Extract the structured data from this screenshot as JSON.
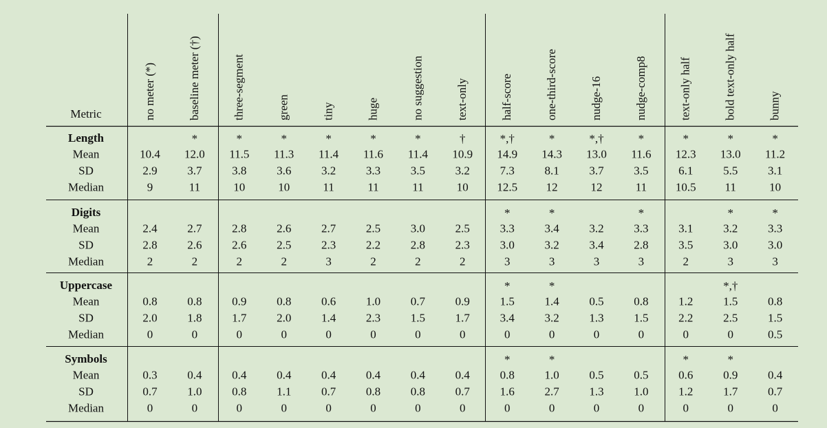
{
  "table": {
    "header": {
      "metric": "Metric",
      "columns": [
        "no meter (*)",
        "baseline meter (†)",
        "three-segment",
        "green",
        "tiny",
        "huge",
        "no suggestion",
        "text-only",
        "half-score",
        "one-third-score",
        "nudge-16",
        "nudge-comp8",
        "text-only half",
        "bold text-only half",
        "bunny"
      ]
    },
    "sections": [
      {
        "name": "Length",
        "markers": [
          null,
          "*",
          "*",
          "*",
          "*",
          "*",
          "*",
          "†",
          "*,†",
          "*",
          "*,†",
          "*",
          "*",
          "*",
          "*"
        ],
        "rows": [
          {
            "label": "Mean",
            "values": [
              "10.4",
              "12.0",
              "11.5",
              "11.3",
              "11.4",
              "11.6",
              "11.4",
              "10.9",
              "14.9",
              "14.3",
              "13.0",
              "11.6",
              "12.3",
              "13.0",
              "11.2"
            ]
          },
          {
            "label": "SD",
            "values": [
              "2.9",
              "3.7",
              "3.8",
              "3.6",
              "3.2",
              "3.3",
              "3.5",
              "3.2",
              "7.3",
              "8.1",
              "3.7",
              "3.5",
              "6.1",
              "5.5",
              "3.1"
            ]
          },
          {
            "label": "Median",
            "values": [
              "9",
              "11",
              "10",
              "10",
              "11",
              "11",
              "11",
              "10",
              "12.5",
              "12",
              "12",
              "11",
              "10.5",
              "11",
              "10"
            ]
          }
        ]
      },
      {
        "name": "Digits",
        "markers": [
          null,
          null,
          null,
          null,
          null,
          null,
          null,
          null,
          "*",
          "*",
          null,
          "*",
          null,
          "*",
          "*"
        ],
        "rows": [
          {
            "label": "Mean",
            "values": [
              "2.4",
              "2.7",
              "2.8",
              "2.6",
              "2.7",
              "2.5",
              "3.0",
              "2.5",
              "3.3",
              "3.4",
              "3.2",
              "3.3",
              "3.1",
              "3.2",
              "3.3"
            ]
          },
          {
            "label": "SD",
            "values": [
              "2.8",
              "2.6",
              "2.6",
              "2.5",
              "2.3",
              "2.2",
              "2.8",
              "2.3",
              "3.0",
              "3.2",
              "3.4",
              "2.8",
              "3.5",
              "3.0",
              "3.0"
            ]
          },
          {
            "label": "Median",
            "values": [
              "2",
              "2",
              "2",
              "2",
              "3",
              "2",
              "2",
              "2",
              "3",
              "3",
              "3",
              "3",
              "2",
              "3",
              "3"
            ]
          }
        ]
      },
      {
        "name": "Uppercase",
        "markers": [
          null,
          null,
          null,
          null,
          null,
          null,
          null,
          null,
          "*",
          "*",
          null,
          null,
          null,
          "*,†",
          null
        ],
        "rows": [
          {
            "label": "Mean",
            "values": [
              "0.8",
              "0.8",
              "0.9",
              "0.8",
              "0.6",
              "1.0",
              "0.7",
              "0.9",
              "1.5",
              "1.4",
              "0.5",
              "0.8",
              "1.2",
              "1.5",
              "0.8"
            ]
          },
          {
            "label": "SD",
            "values": [
              "2.0",
              "1.8",
              "1.7",
              "2.0",
              "1.4",
              "2.3",
              "1.5",
              "1.7",
              "3.4",
              "3.2",
              "1.3",
              "1.5",
              "2.2",
              "2.5",
              "1.5"
            ]
          },
          {
            "label": "Median",
            "values": [
              "0",
              "0",
              "0",
              "0",
              "0",
              "0",
              "0",
              "0",
              "0",
              "0",
              "0",
              "0",
              "0",
              "0",
              "0.5"
            ]
          }
        ]
      },
      {
        "name": "Symbols",
        "markers": [
          null,
          null,
          null,
          null,
          null,
          null,
          null,
          null,
          "*",
          "*",
          null,
          null,
          "*",
          "*",
          null
        ],
        "rows": [
          {
            "label": "Mean",
            "values": [
              "0.3",
              "0.4",
              "0.4",
              "0.4",
              "0.4",
              "0.4",
              "0.4",
              "0.4",
              "0.8",
              "1.0",
              "0.5",
              "0.5",
              "0.6",
              "0.9",
              "0.4"
            ]
          },
          {
            "label": "SD",
            "values": [
              "0.7",
              "1.0",
              "0.8",
              "1.1",
              "0.7",
              "0.8",
              "0.8",
              "0.7",
              "1.6",
              "2.7",
              "1.3",
              "1.0",
              "1.2",
              "1.7",
              "0.7"
            ]
          },
          {
            "label": "Median",
            "values": [
              "0",
              "0",
              "0",
              "0",
              "0",
              "0",
              "0",
              "0",
              "0",
              "0",
              "0",
              "0",
              "0",
              "0",
              "0"
            ]
          }
        ]
      }
    ]
  }
}
